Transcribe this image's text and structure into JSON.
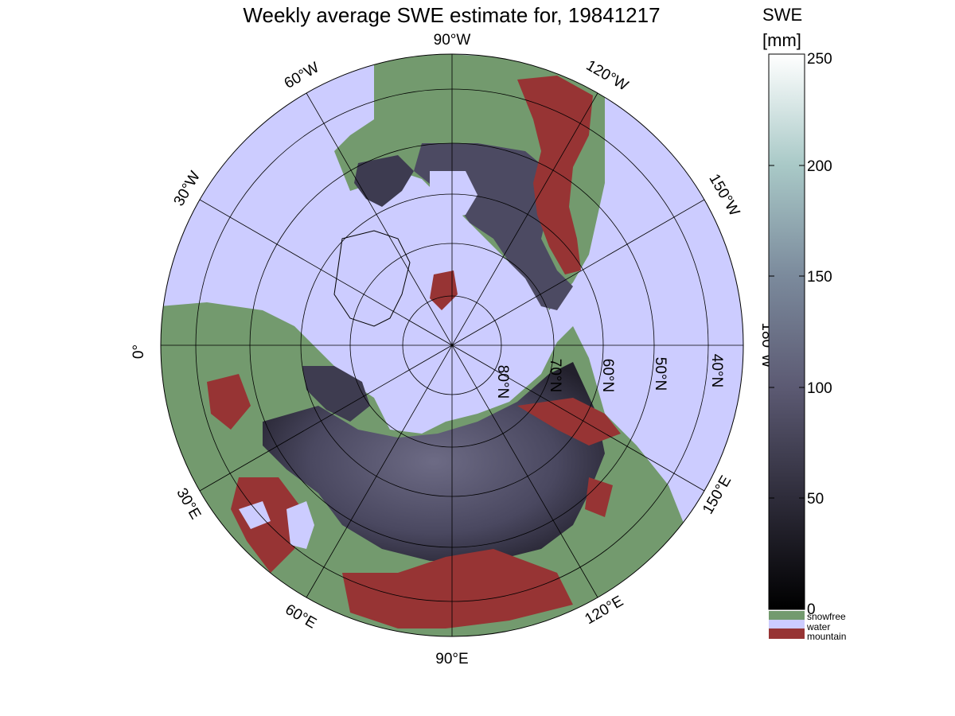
{
  "figure": {
    "title": "Weekly average SWE estimate for, 19841217"
  },
  "map": {
    "projection": "north polar stereographic",
    "longitude_labels": [
      "90°W",
      "120°W",
      "150°W",
      "180°W",
      "150°E",
      "120°E",
      "90°E",
      "60°E",
      "30°E",
      "0°",
      "30°W",
      "60°W"
    ],
    "latitude_labels": [
      "80°N",
      "70°N",
      "60°N",
      "50°N",
      "40°N"
    ],
    "region_colors": {
      "water": "#ccccff",
      "snowfree": "#739a6e",
      "mountain": "#973434",
      "snow_low": "#1c1a24",
      "snow_high": "#7c7b95"
    }
  },
  "colorbar": {
    "title_line1": "SWE",
    "title_line2": "[mm]",
    "ticks": [
      "0",
      "50",
      "100",
      "150",
      "200",
      "250"
    ],
    "range": [
      0,
      250
    ],
    "categories": [
      {
        "label": "snowfree",
        "color": "#739a6e"
      },
      {
        "label": "water",
        "color": "#ccccff"
      },
      {
        "label": "mountain",
        "color": "#973434"
      }
    ]
  }
}
